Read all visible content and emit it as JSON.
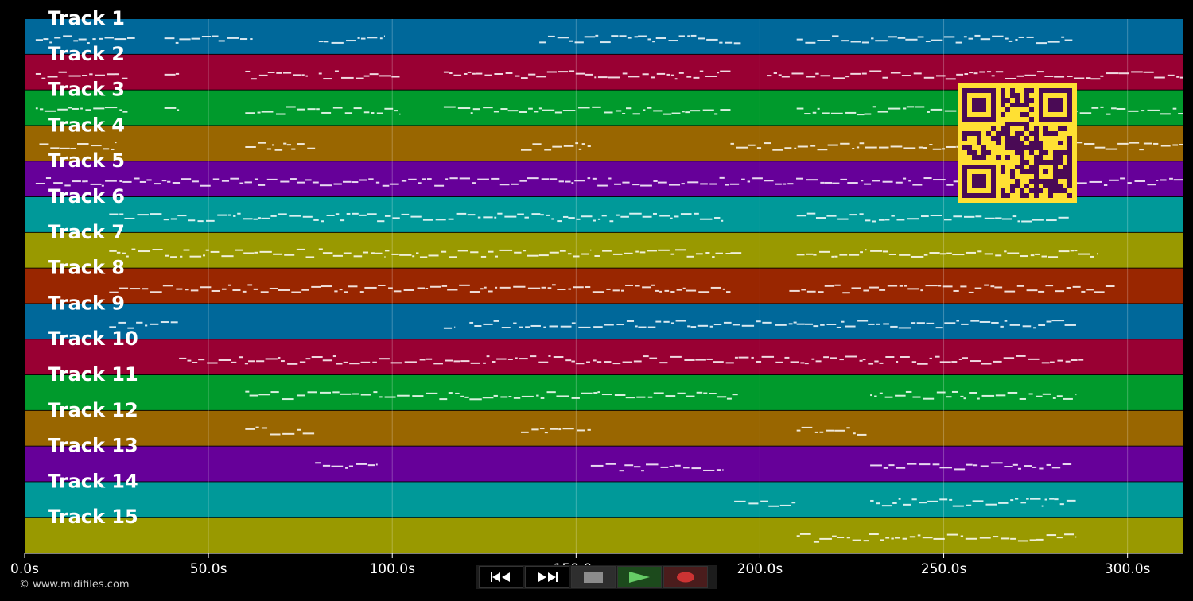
{
  "tracks": [
    {
      "label": "Track 1",
      "color": "#00689a"
    },
    {
      "label": "Track 2",
      "color": "#990033"
    },
    {
      "label": "Track 3",
      "color": "#009a2c"
    },
    {
      "label": "Track 4",
      "color": "#996600"
    },
    {
      "label": "Track 5",
      "color": "#660099"
    },
    {
      "label": "Track 6",
      "color": "#009999"
    },
    {
      "label": "Track 7",
      "color": "#999900"
    },
    {
      "label": "Track 8",
      "color": "#992600"
    },
    {
      "label": "Track 9",
      "color": "#00689a"
    },
    {
      "label": "Track 10",
      "color": "#990033"
    },
    {
      "label": "Track 11",
      "color": "#009a2c"
    },
    {
      "label": "Track 12",
      "color": "#996600"
    },
    {
      "label": "Track 13",
      "color": "#660099"
    },
    {
      "label": "Track 14",
      "color": "#009999"
    },
    {
      "label": "Track 15",
      "color": "#999900"
    }
  ],
  "timeline": {
    "ticks": [
      {
        "value": 0,
        "label": "0.0s"
      },
      {
        "value": 50,
        "label": "50.0s"
      },
      {
        "value": 100,
        "label": "100.0s"
      },
      {
        "value": 150,
        "label": "150.0s"
      },
      {
        "value": 200,
        "label": "200.0s"
      },
      {
        "value": 250,
        "label": "250.0s"
      },
      {
        "value": 300,
        "label": "300.0s"
      }
    ],
    "range_seconds": [
      0,
      315
    ]
  },
  "notes": [
    {
      "track": 0,
      "segments": [
        [
          3,
          30
        ],
        [
          38,
          62
        ],
        [
          80,
          98
        ],
        [
          140,
          195
        ],
        [
          210,
          285
        ]
      ]
    },
    {
      "track": 1,
      "segments": [
        [
          3,
          28
        ],
        [
          38,
          42
        ],
        [
          60,
          77
        ],
        [
          80,
          102
        ],
        [
          114,
          192
        ],
        [
          202,
          290
        ],
        [
          290,
          315
        ]
      ]
    },
    {
      "track": 2,
      "segments": [
        [
          3,
          28
        ],
        [
          38,
          42
        ],
        [
          60,
          102
        ],
        [
          114,
          192
        ],
        [
          210,
          315
        ]
      ]
    },
    {
      "track": 3,
      "segments": [
        [
          4,
          25
        ],
        [
          60,
          79
        ],
        [
          135,
          154
        ],
        [
          192,
          315
        ]
      ]
    },
    {
      "track": 4,
      "segments": [
        [
          3,
          315
        ]
      ]
    },
    {
      "track": 5,
      "segments": [
        [
          23,
          190
        ],
        [
          210,
          284
        ]
      ]
    },
    {
      "track": 6,
      "segments": [
        [
          23,
          79
        ],
        [
          80,
          98
        ],
        [
          98,
          154
        ],
        [
          155,
          192
        ],
        [
          192,
          195
        ],
        [
          210,
          229
        ],
        [
          230,
          292
        ]
      ]
    },
    {
      "track": 7,
      "segments": [
        [
          23,
          192
        ],
        [
          208,
          297
        ]
      ]
    },
    {
      "track": 8,
      "segments": [
        [
          23,
          42
        ],
        [
          114,
          117
        ],
        [
          121,
          210
        ],
        [
          210,
          286
        ]
      ]
    },
    {
      "track": 9,
      "segments": [
        [
          42,
          288
        ]
      ]
    },
    {
      "track": 10,
      "segments": [
        [
          60,
          194
        ],
        [
          230,
          286
        ]
      ]
    },
    {
      "track": 11,
      "segments": [
        [
          60,
          79
        ],
        [
          135,
          154
        ],
        [
          210,
          229
        ]
      ]
    },
    {
      "track": 12,
      "segments": [
        [
          79,
          96
        ],
        [
          154,
          190
        ],
        [
          230,
          285
        ]
      ]
    },
    {
      "track": 13,
      "segments": [
        [
          193,
          210
        ],
        [
          230,
          286
        ]
      ]
    },
    {
      "track": 14,
      "segments": [
        [
          210,
          286
        ]
      ]
    }
  ],
  "qr_code": {
    "fg": "#ffe033",
    "bg": "#4a0a55"
  },
  "transport": {
    "buttons": [
      {
        "name": "rewind-button",
        "icon": "rewind-icon",
        "bg": "#000000",
        "accent": "#ffffff"
      },
      {
        "name": "fast-forward-button",
        "icon": "fast-forward-icon",
        "bg": "#000000",
        "accent": "#ffffff"
      },
      {
        "name": "stop-button",
        "icon": "stop-icon",
        "bg": "#2e2e2e",
        "accent": "#8c8c8c"
      },
      {
        "name": "play-button",
        "icon": "play-icon",
        "bg": "#1c4a1c",
        "accent": "#66cc66"
      },
      {
        "name": "record-button",
        "icon": "record-icon",
        "bg": "#4a1c1c",
        "accent": "#cc3333"
      }
    ]
  },
  "copyright": "© www.midifiles.com"
}
